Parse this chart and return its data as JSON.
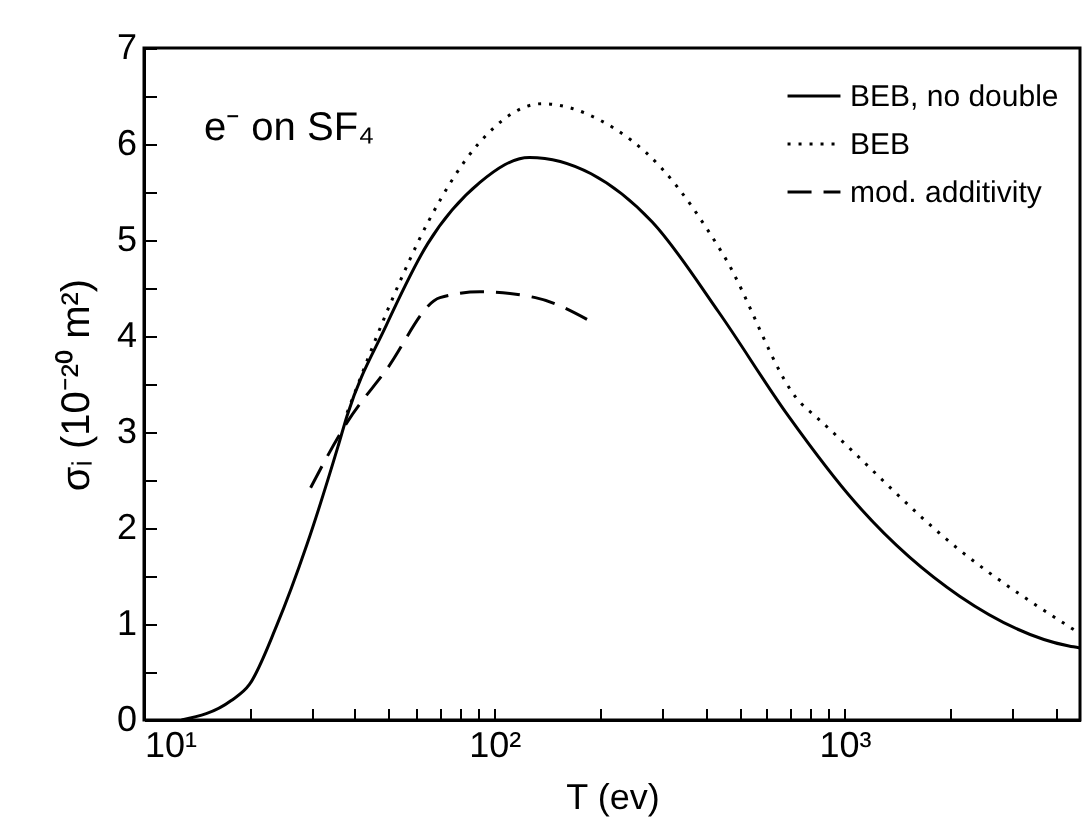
{
  "chart_data": {
    "type": "line",
    "xlabel": "T (ev)",
    "ylabel": "σᵢ (10⁻²⁰ m²)",
    "annotations": [
      "e⁻ on SF₄"
    ],
    "log": "x",
    "grid": false,
    "legend": "top right",
    "marker": "none",
    "xlim": [
      10,
      4700
    ],
    "ylim": [
      0,
      7
    ],
    "xticks": [
      {
        "value": 10,
        "label": "10¹"
      },
      {
        "value": 20,
        "label": null
      },
      {
        "value": 30,
        "label": null
      },
      {
        "value": 40,
        "label": null
      },
      {
        "value": 50,
        "label": null
      },
      {
        "value": 60,
        "label": null
      },
      {
        "value": 70,
        "label": null
      },
      {
        "value": 80,
        "label": null
      },
      {
        "value": 90,
        "label": null
      },
      {
        "value": 100,
        "label": "10²"
      },
      {
        "value": 200,
        "label": null
      },
      {
        "value": 300,
        "label": null
      },
      {
        "value": 400,
        "label": null
      },
      {
        "value": 500,
        "label": null
      },
      {
        "value": 600,
        "label": null
      },
      {
        "value": 700,
        "label": null
      },
      {
        "value": 800,
        "label": null
      },
      {
        "value": 900,
        "label": null
      },
      {
        "value": 1000,
        "label": "10³"
      },
      {
        "value": 2000,
        "label": null
      },
      {
        "value": 3000,
        "label": null
      },
      {
        "value": 4000,
        "label": null
      }
    ],
    "yticks": [
      0,
      {
        "value": 0.5,
        "label": null
      },
      1,
      {
        "value": 1.5,
        "label": null
      },
      2,
      {
        "value": 2.5,
        "label": null
      },
      3,
      {
        "value": 3.5,
        "label": null
      },
      4,
      {
        "value": 4.5,
        "label": null
      },
      5,
      {
        "value": 5.5,
        "label": null
      },
      6,
      {
        "value": 6.5,
        "label": null
      },
      7
    ],
    "series": [
      {
        "name": "BEB, no double",
        "color": "#000000",
        "line_style": "solid",
        "x": [
          12.8,
          17.7,
          20,
          23.9,
          29.2,
          35.8,
          38,
          49,
          64.5,
          91,
          126,
          189,
          282,
          437,
          690,
          1070,
          2130,
          4370,
          4700
        ],
        "values": [
          0,
          0.2,
          0.37,
          0.98,
          1.83,
          2.85,
          3.17,
          4.1,
          4.96,
          5.6,
          5.86,
          5.69,
          5.19,
          4.25,
          3.17,
          2.27,
          1.29,
          0.77,
          0.75
        ]
      },
      {
        "name": "BEB",
        "color": "#000000",
        "line_style": "dotted",
        "x": [
          38,
          50,
          65,
          90,
          137,
          200,
          300,
          450,
          750,
          822,
          2130,
          4700
        ],
        "values": [
          3.2,
          4.3,
          5.2,
          6.0,
          6.42,
          6.25,
          5.75,
          4.85,
          3.3,
          3.17,
          1.77,
          0.9
        ]
      },
      {
        "name": "mod. additivity",
        "color": "#000000",
        "line_style": "dashed",
        "x": [
          29.9,
          38,
          49,
          70,
          91,
          131,
          189
        ],
        "values": [
          2.42,
          3.1,
          3.64,
          4.4,
          4.46,
          4.4,
          4.15
        ]
      }
    ]
  }
}
